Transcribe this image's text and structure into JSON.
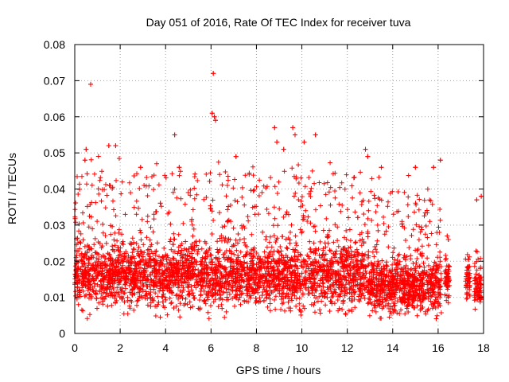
{
  "chart_data": {
    "type": "scatter",
    "title": "Day 051 of 2016, Rate Of TEC Index for receiver tuva",
    "xlabel": "GPS time / hours",
    "ylabel": "ROTI / TECUs",
    "xlim": [
      0,
      18
    ],
    "ylim": [
      0,
      0.08
    ],
    "x_ticks": [
      0,
      2,
      4,
      6,
      8,
      10,
      12,
      14,
      16,
      18
    ],
    "y_ticks": [
      0,
      0.01,
      0.02,
      0.03,
      0.04,
      0.05,
      0.06,
      0.07,
      0.08
    ],
    "x_tick_labels": [
      "0",
      "2",
      "4",
      "6",
      "8",
      "10",
      "12",
      "14",
      "16",
      "18"
    ],
    "y_tick_labels": [
      "0",
      "0.01",
      "0.02",
      "0.03",
      "0.04",
      "0.05",
      "0.06",
      "0.07",
      "0.08"
    ],
    "grid": true,
    "marker": "+",
    "color": "#ff0000",
    "series": [
      {
        "name": "ROTI",
        "outliers": [
          [
            0.7,
            0.069
          ],
          [
            6.1,
            0.072
          ],
          [
            6.15,
            0.06
          ],
          [
            6.2,
            0.059
          ],
          [
            6.05,
            0.061
          ],
          [
            8.8,
            0.057
          ],
          [
            9.6,
            0.057
          ],
          [
            9.7,
            0.055
          ],
          [
            10.6,
            0.055
          ],
          [
            4.4,
            0.055
          ],
          [
            0.5,
            0.051
          ],
          [
            0.45,
            0.048
          ],
          [
            1.5,
            0.052
          ],
          [
            1.8,
            0.052
          ],
          [
            7.1,
            0.049
          ],
          [
            8.9,
            0.053
          ],
          [
            12.8,
            0.051
          ],
          [
            12.9,
            0.049
          ],
          [
            15.0,
            0.046
          ],
          [
            15.8,
            0.046
          ],
          [
            16.1,
            0.048
          ],
          [
            13.5,
            0.046
          ],
          [
            17.9,
            0.038
          ],
          [
            17.7,
            0.037
          ],
          [
            16.4,
            0.027
          ],
          [
            16.45,
            0.026
          ],
          [
            4.6,
            0.046
          ],
          [
            2.9,
            0.046
          ],
          [
            9.2,
            0.051
          ],
          [
            10.1,
            0.053
          ]
        ],
        "segments": [
          {
            "x_start": 0.0,
            "x_end": 12.85,
            "base_mean": 0.016,
            "spread": 0.006,
            "peak": 0.045
          },
          {
            "x_start": 12.9,
            "x_end": 16.15,
            "base_mean": 0.013,
            "spread": 0.005,
            "peak": 0.04
          },
          {
            "x_start": 16.3,
            "x_end": 16.5,
            "base_mean": 0.015,
            "spread": 0.004,
            "peak": 0.02
          },
          {
            "x_start": 17.2,
            "x_end": 17.4,
            "base_mean": 0.014,
            "spread": 0.004,
            "peak": 0.022
          },
          {
            "x_start": 17.6,
            "x_end": 17.9,
            "base_mean": 0.012,
            "spread": 0.004,
            "peak": 0.025
          }
        ]
      }
    ]
  }
}
